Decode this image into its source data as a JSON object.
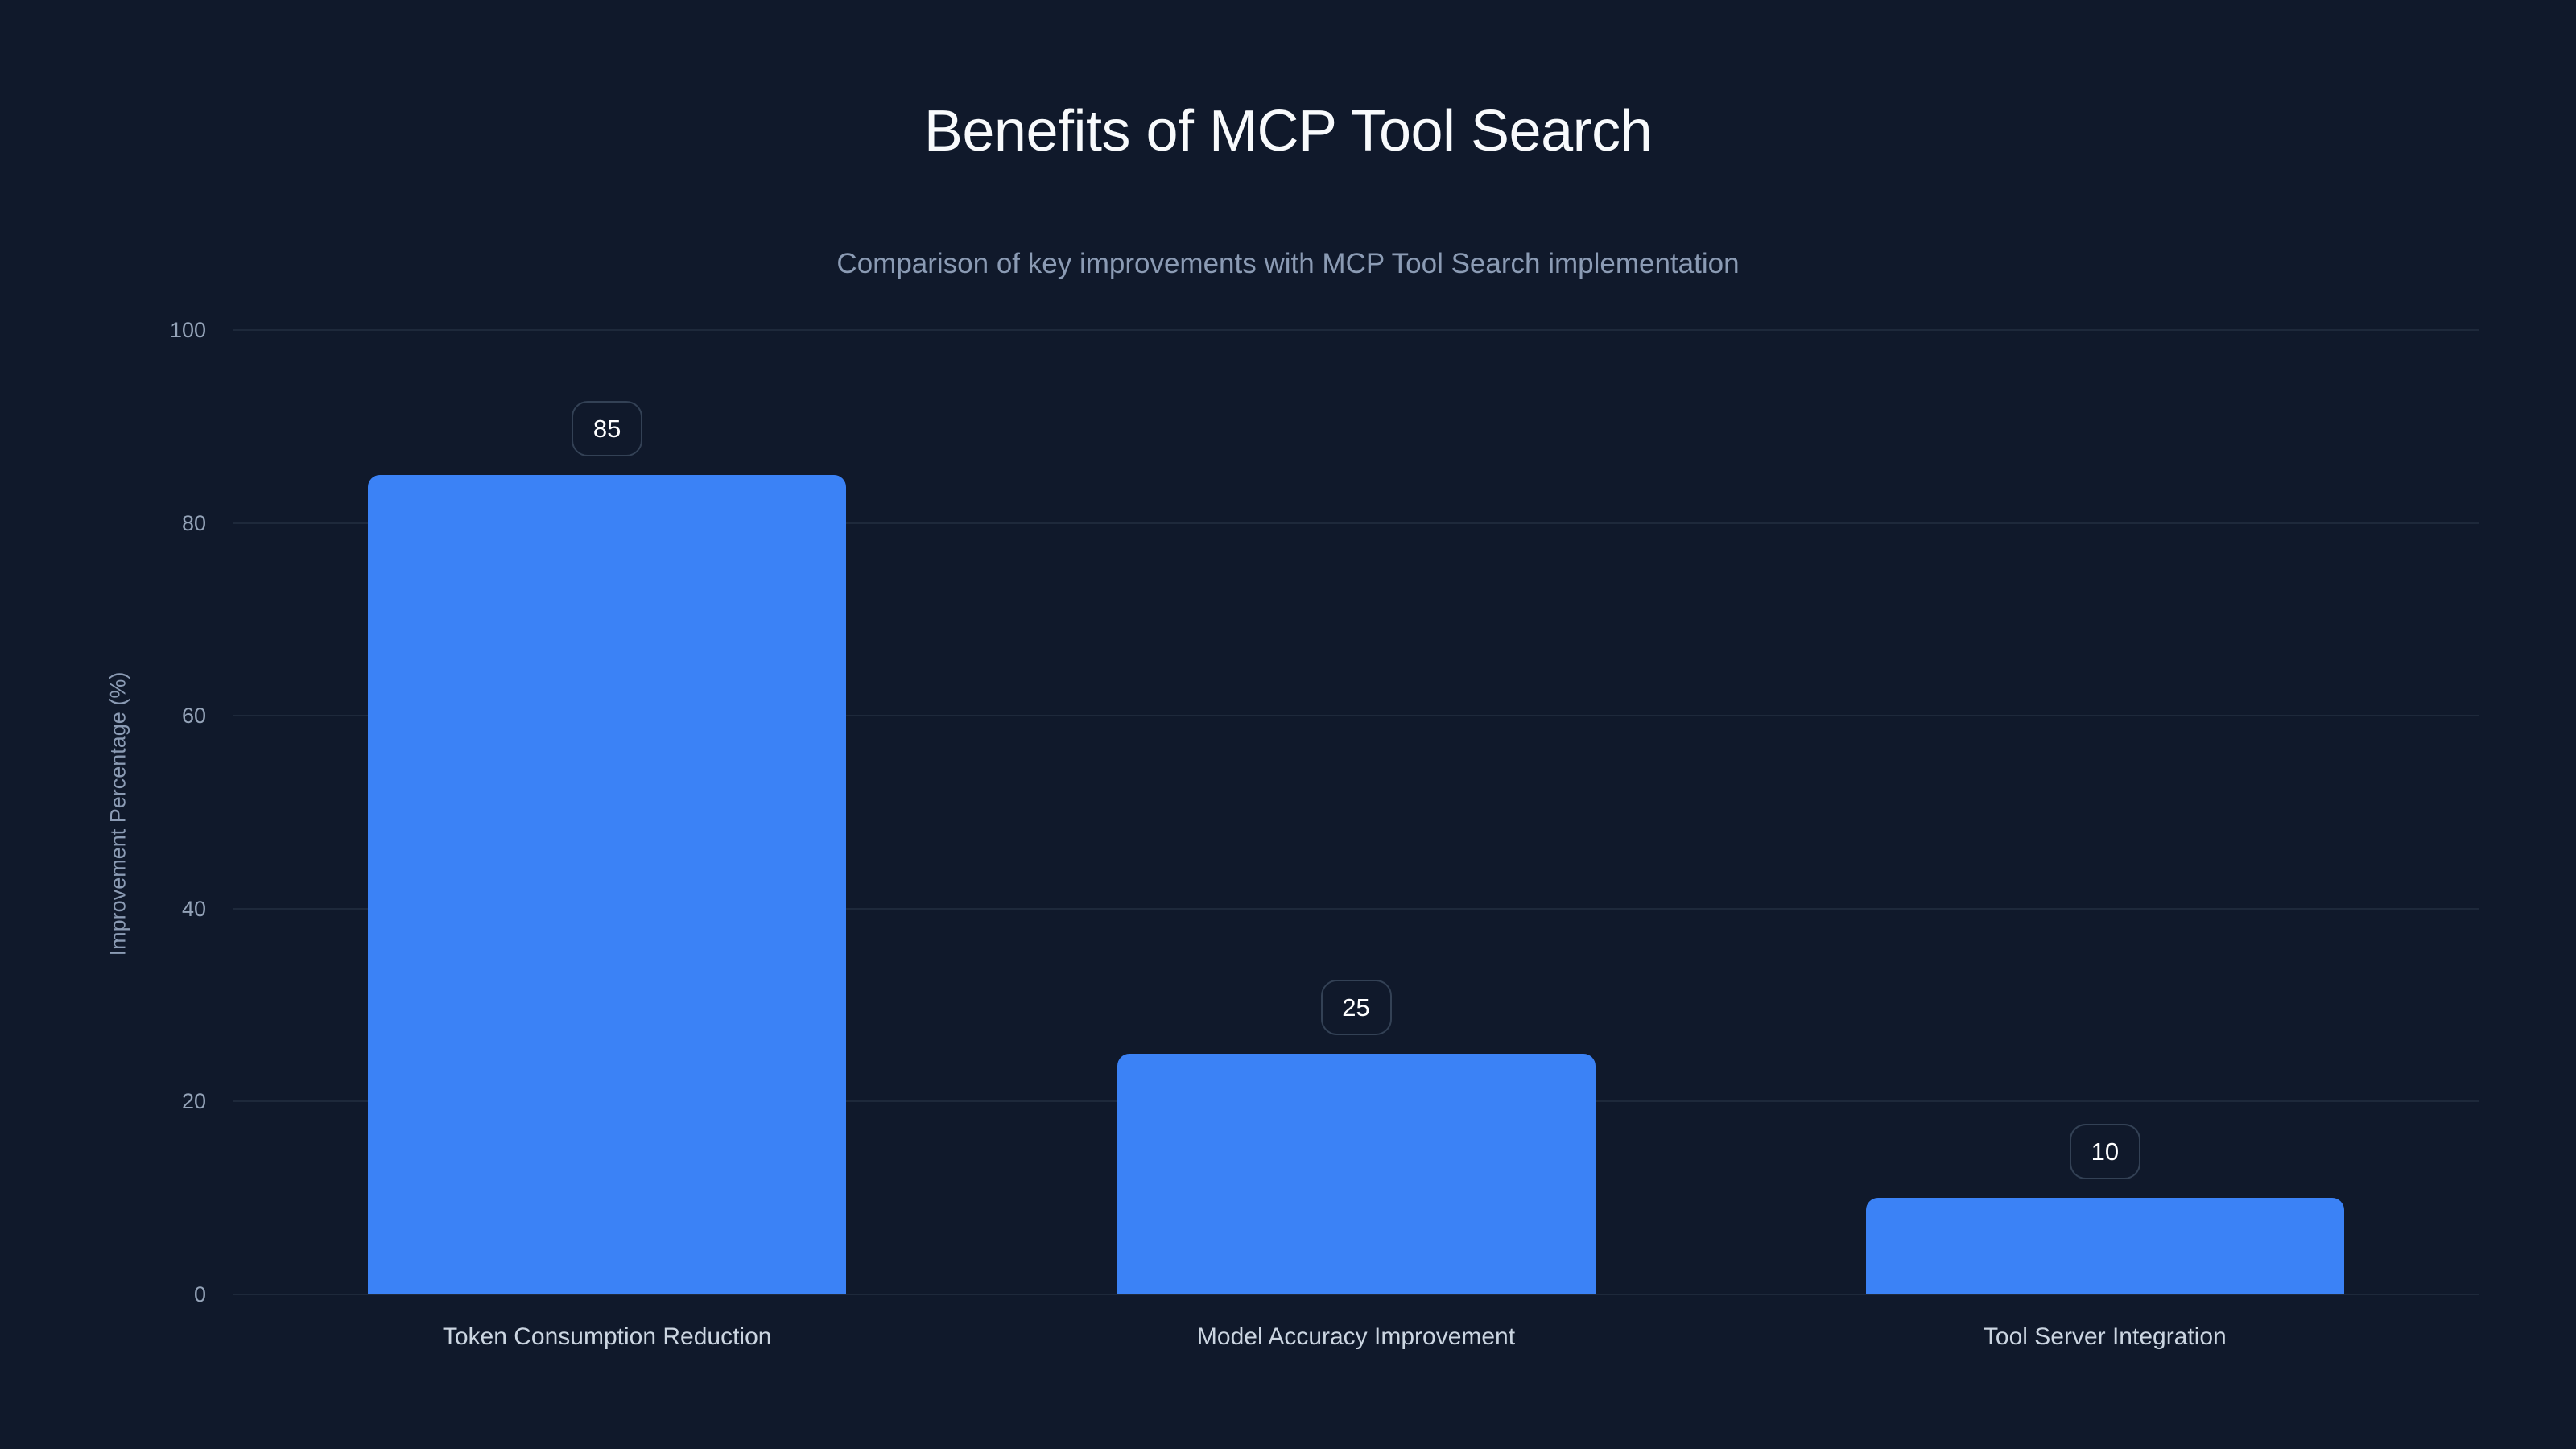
{
  "chart": {
    "title": "Benefits of MCP Tool Search",
    "subtitle": "Comparison of key improvements with MCP Tool Search implementation",
    "y_axis_label": "Improvement Percentage (%)",
    "y_ticks": [
      "0",
      "20",
      "40",
      "60",
      "80",
      "100"
    ],
    "bars": [
      {
        "label": "Token Consumption Reduction",
        "value": 85,
        "value_text": "85"
      },
      {
        "label": "Model Accuracy Improvement",
        "value": 25,
        "value_text": "25"
      },
      {
        "label": "Tool Server Integration",
        "value": 10,
        "value_text": "10"
      }
    ],
    "colors": {
      "background": "#10192b",
      "bar": "#3b82f6",
      "gridline": "#1e293b",
      "badge_border": "#334155",
      "title": "#f8fafc",
      "subtitle": "#8b9bb4",
      "tick": "#94a3b8",
      "category_label": "#cbd5e1"
    }
  },
  "chart_data": {
    "type": "bar",
    "title": "Benefits of MCP Tool Search",
    "subtitle": "Comparison of key improvements with MCP Tool Search implementation",
    "categories": [
      "Token Consumption Reduction",
      "Model Accuracy Improvement",
      "Tool Server Integration"
    ],
    "values": [
      85,
      25,
      10
    ],
    "xlabel": "",
    "ylabel": "Improvement Percentage (%)",
    "ylim": [
      0,
      100
    ],
    "yticks": [
      0,
      20,
      40,
      60,
      80,
      100
    ],
    "grid": true,
    "legend": null,
    "data_labels": true,
    "bar_color": "#3b82f6"
  }
}
